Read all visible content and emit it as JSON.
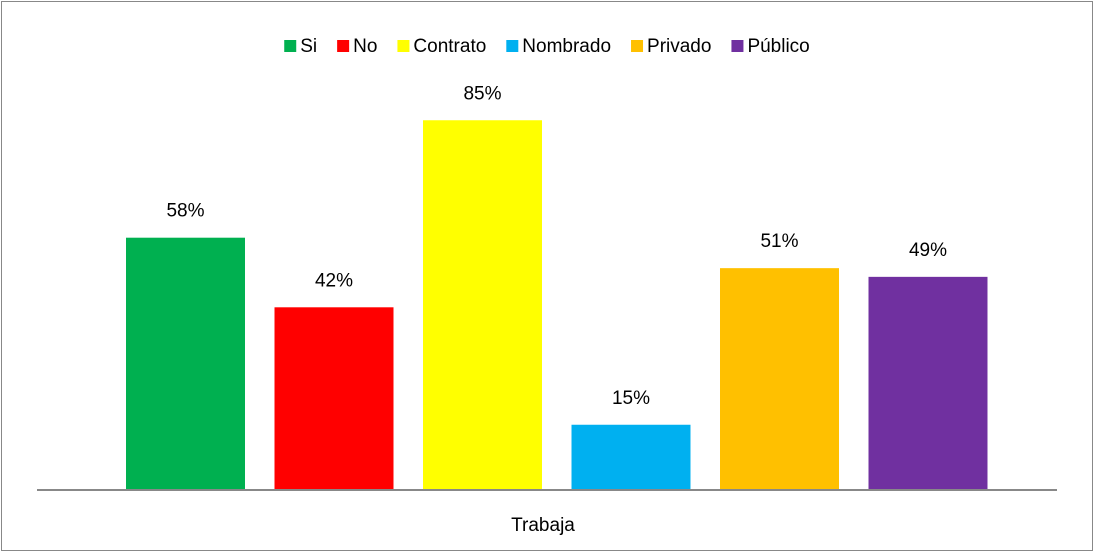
{
  "chart_data": {
    "type": "bar",
    "categories": [
      "Trabaja"
    ],
    "series": [
      {
        "name": "Si",
        "color": "#00b050",
        "values": [
          58
        ],
        "value_labels": [
          "58%"
        ]
      },
      {
        "name": "No",
        "color": "#ff0000",
        "values": [
          42
        ],
        "value_labels": [
          "42%"
        ]
      },
      {
        "name": "Contrato",
        "color": "#ffff00",
        "values": [
          85
        ],
        "value_labels": [
          "85%"
        ]
      },
      {
        "name": "Nombrado",
        "color": "#00b0f0",
        "values": [
          15
        ],
        "value_labels": [
          "15%"
        ]
      },
      {
        "name": "Privado",
        "color": "#ffc000",
        "values": [
          51
        ],
        "value_labels": [
          "51%"
        ]
      },
      {
        "name": "Público",
        "color": "#7030a0",
        "values": [
          49
        ],
        "value_labels": [
          "49%"
        ]
      }
    ],
    "legend": "top"
  }
}
